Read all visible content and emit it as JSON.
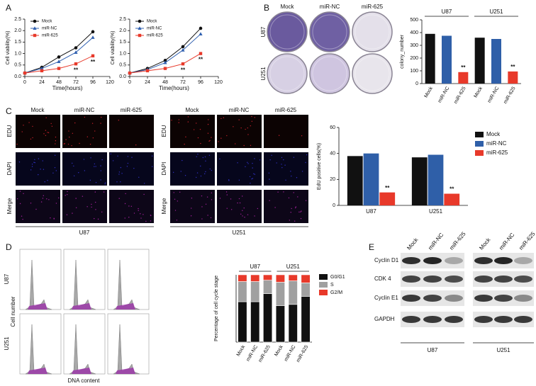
{
  "panel_labels": [
    "A",
    "B",
    "C",
    "D",
    "E"
  ],
  "chart_data": [
    {
      "type": "line",
      "xlabel": "Time(hours)",
      "ylabel": "Cell viability(%)",
      "x": [
        0,
        24,
        48,
        72,
        96
      ],
      "xlim": [
        0,
        120
      ],
      "xticks": [
        0,
        24,
        48,
        72,
        96,
        120
      ],
      "ylim": [
        0,
        2.5
      ],
      "yticks": [
        {
          "value": 0,
          "label": "0.0"
        },
        0.5,
        {
          "value": 1,
          "label": "1.0"
        },
        1.5,
        {
          "value": 2,
          "label": "2.0"
        },
        2.5
      ],
      "series": [
        {
          "name": "Mock",
          "color": "#111111",
          "marker": "circle",
          "values": [
            0.15,
            0.4,
            0.85,
            1.25,
            1.95
          ]
        },
        {
          "name": "miR-NC",
          "color": "#3060b0",
          "marker": "triangle",
          "values": [
            0.15,
            0.35,
            0.65,
            1.05,
            1.7
          ]
        },
        {
          "name": "miR-625",
          "color": "#e8392a",
          "marker": "square",
          "values": [
            0.15,
            0.25,
            0.35,
            0.55,
            0.9
          ],
          "marks": [
            null,
            null,
            null,
            "**",
            "**"
          ]
        }
      ]
    },
    {
      "type": "line",
      "xlabel": "Time(hours)",
      "ylabel": "Cell viability(%)",
      "x": [
        0,
        24,
        48,
        72,
        96
      ],
      "xlim": [
        0,
        120
      ],
      "xticks": [
        0,
        24,
        48,
        72,
        96,
        120
      ],
      "ylim": [
        0,
        2.5
      ],
      "yticks": [
        {
          "value": 0,
          "label": "0.0"
        },
        0.5,
        {
          "value": 1,
          "label": "1.0"
        },
        1.5,
        {
          "value": 2,
          "label": "2.0"
        },
        2.5
      ],
      "series": [
        {
          "name": "Mock",
          "color": "#111111",
          "marker": "circle",
          "values": [
            0.15,
            0.35,
            0.7,
            1.3,
            2.1
          ]
        },
        {
          "name": "miR-NC",
          "color": "#3060b0",
          "marker": "triangle",
          "values": [
            0.15,
            0.3,
            0.6,
            1.15,
            1.85
          ]
        },
        {
          "name": "miR-625",
          "color": "#e8392a",
          "marker": "square",
          "values": [
            0.15,
            0.25,
            0.35,
            0.55,
            1.0
          ],
          "marks": [
            null,
            null,
            null,
            "**",
            "**"
          ]
        }
      ]
    },
    {
      "type": "bar",
      "ylabel": "colony_number",
      "categories": [
        "Mock",
        "miR-NC",
        "miR-625",
        "Mock",
        "miR-NC",
        "miR-625"
      ],
      "groups": [
        "U87",
        "U251"
      ],
      "values": [
        390,
        375,
        90,
        360,
        350,
        95
      ],
      "colors": [
        "#111111",
        "#2f5fa8",
        "#e8392a",
        "#111111",
        "#2f5fa8",
        "#e8392a"
      ],
      "marks": [
        null,
        null,
        "**",
        null,
        null,
        "**"
      ],
      "ylim": [
        0,
        500
      ],
      "yticks": [
        0,
        100,
        200,
        300,
        400,
        500
      ]
    },
    {
      "type": "bar",
      "ylabel": "EdU positive cells(%)",
      "categories": [
        "U87",
        "U251"
      ],
      "series": [
        {
          "name": "Mock",
          "color": "#111111",
          "values": [
            38,
            37
          ]
        },
        {
          "name": "miR-NC",
          "color": "#2f5fa8",
          "values": [
            40,
            39
          ]
        },
        {
          "name": "miR-625",
          "color": "#e8392a",
          "values": [
            10,
            9
          ],
          "marks": [
            "**",
            "**"
          ]
        }
      ],
      "ylim": [
        0,
        60
      ],
      "yticks": [
        0,
        20,
        40,
        60
      ]
    },
    {
      "type": "stacked_bar",
      "ylabel": "Percentage of cell cycle stage",
      "categories": [
        "Mock",
        "miR-NC",
        "miR-625",
        "Mock",
        "miR-NC",
        "miR-625"
      ],
      "groups": [
        "U87",
        "U251"
      ],
      "series": [
        {
          "name": "G0/G1",
          "color": "#111111",
          "values": [
            60,
            60,
            72,
            54,
            56,
            68
          ]
        },
        {
          "name": "S",
          "color": "#a0a0a0",
          "values": [
            30,
            30,
            20,
            35,
            35,
            20
          ]
        },
        {
          "name": "G2/M",
          "color": "#e8392a",
          "values": [
            10,
            10,
            8,
            11,
            9,
            12
          ]
        }
      ],
      "ylim": [
        0,
        100
      ]
    }
  ],
  "colony_images": {
    "columns": [
      "Mock",
      "miR-NC",
      "miR-625"
    ],
    "rows": [
      "U87",
      "U251"
    ]
  },
  "edu_images": {
    "columns": [
      "Mock",
      "miR-NC",
      "miR-625"
    ],
    "rows": [
      "EDU",
      "DAPI",
      "Merge"
    ],
    "groups": [
      "U87",
      "U251"
    ]
  },
  "flow_images": {
    "rows": [
      "U87",
      "U251"
    ],
    "ylabel": "Cell number",
    "xlabel": "DNA content"
  },
  "western_blot": {
    "columns": [
      "Mock",
      "miR-NC",
      "miR-625"
    ],
    "proteins": [
      "Cyclin D1",
      "CDK 4",
      "Cyclin E1",
      "GAPDH"
    ],
    "groups": [
      "U87",
      "U251"
    ]
  }
}
